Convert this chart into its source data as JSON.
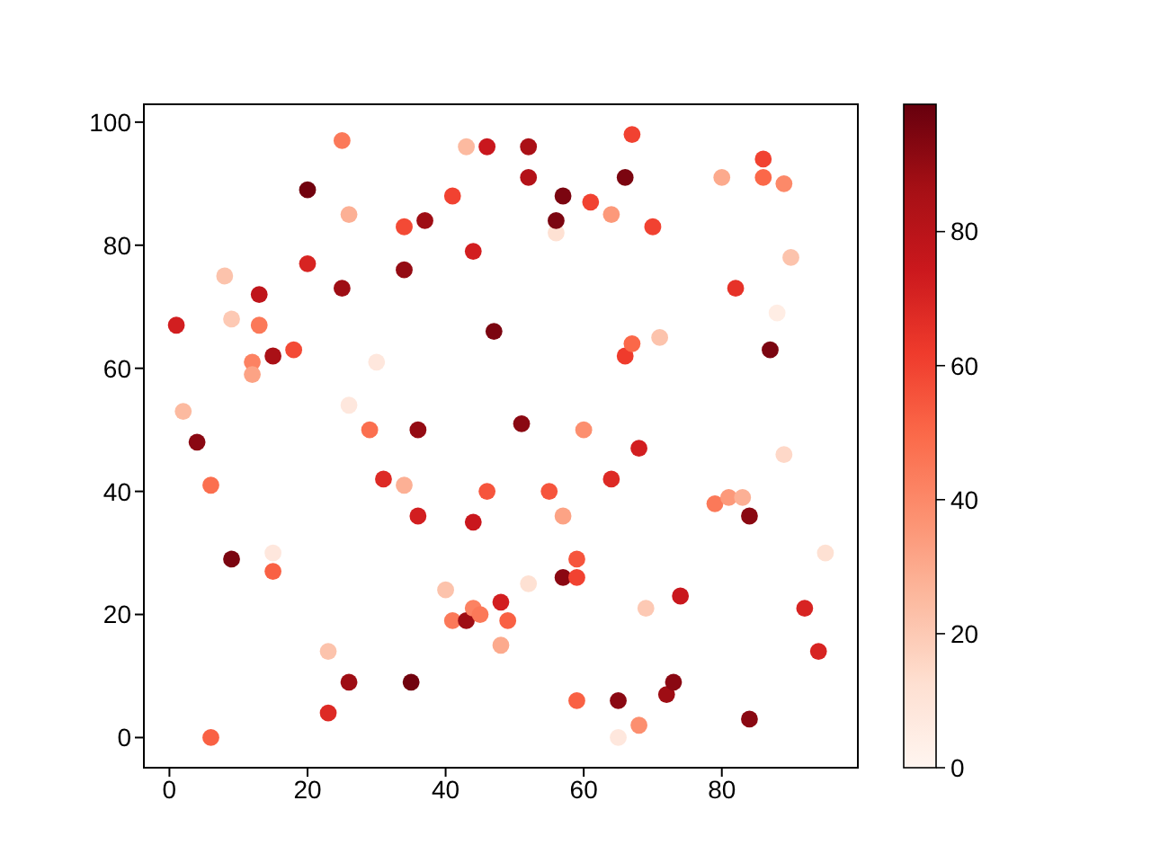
{
  "chart_data": {
    "type": "scatter",
    "x": [
      1,
      2,
      4,
      6,
      6,
      8,
      9,
      9,
      12,
      12,
      13,
      13,
      15,
      15,
      15,
      18,
      20,
      20,
      23,
      23,
      25,
      25,
      26,
      26,
      26,
      29,
      30,
      31,
      34,
      34,
      34,
      35,
      36,
      36,
      37,
      40,
      41,
      41,
      43,
      43,
      44,
      44,
      44,
      45,
      46,
      46,
      47,
      48,
      48,
      49,
      51,
      52,
      52,
      52,
      55,
      56,
      56,
      57,
      57,
      57,
      59,
      59,
      59,
      60,
      61,
      64,
      64,
      65,
      65,
      66,
      66,
      67,
      67,
      68,
      68,
      69,
      70,
      71,
      72,
      73,
      74,
      79,
      80,
      81,
      82,
      83,
      84,
      84,
      86,
      86,
      87,
      88,
      89,
      89,
      90,
      92,
      94,
      95
    ],
    "values": [
      67,
      53,
      48,
      41,
      0,
      75,
      68,
      29,
      61,
      59,
      72,
      67,
      62,
      30,
      27,
      63,
      89,
      77,
      14,
      4,
      97,
      73,
      85,
      54,
      9,
      50,
      61,
      42,
      83,
      76,
      41,
      9,
      50,
      36,
      84,
      24,
      88,
      19,
      96,
      19,
      79,
      35,
      21,
      20,
      96,
      40,
      66,
      22,
      15,
      19,
      51,
      96,
      91,
      25,
      40,
      82,
      84,
      88,
      36,
      26,
      29,
      26,
      6,
      50,
      87,
      85,
      42,
      6,
      0,
      91,
      62,
      98,
      64,
      47,
      2,
      21,
      83,
      65,
      7,
      9,
      23,
      38,
      91,
      39,
      73,
      39,
      36,
      3,
      94,
      91,
      63,
      69,
      90,
      46,
      78,
      21,
      14,
      30
    ],
    "cvalues": [
      72,
      25,
      92,
      48,
      52,
      22,
      20,
      95,
      42,
      32,
      78,
      45,
      85,
      8,
      52,
      58,
      97,
      70,
      22,
      68,
      45,
      88,
      28,
      8,
      88,
      48,
      8,
      68,
      58,
      90,
      28,
      97,
      90,
      72,
      88,
      22,
      60,
      45,
      25,
      88,
      72,
      75,
      42,
      45,
      75,
      55,
      95,
      72,
      30,
      52,
      92,
      85,
      82,
      12,
      55,
      12,
      95,
      95,
      32,
      92,
      55,
      60,
      52,
      38,
      60,
      35,
      68,
      92,
      8,
      95,
      62,
      60,
      50,
      72,
      38,
      20,
      60,
      22,
      88,
      92,
      75,
      45,
      30,
      35,
      65,
      28,
      92,
      92,
      60,
      50,
      95,
      5,
      40,
      15,
      22,
      70,
      70,
      12
    ],
    "xlim": [
      -3.7,
      99.7
    ],
    "ylim": [
      -4.9,
      102.9
    ],
    "xticks": [
      0,
      20,
      40,
      60,
      80
    ],
    "yticks": [
      0,
      20,
      40,
      60,
      80,
      100
    ],
    "clim": [
      0,
      99
    ],
    "cticks": [
      0,
      20,
      40,
      60,
      80
    ],
    "marker": "circle"
  }
}
